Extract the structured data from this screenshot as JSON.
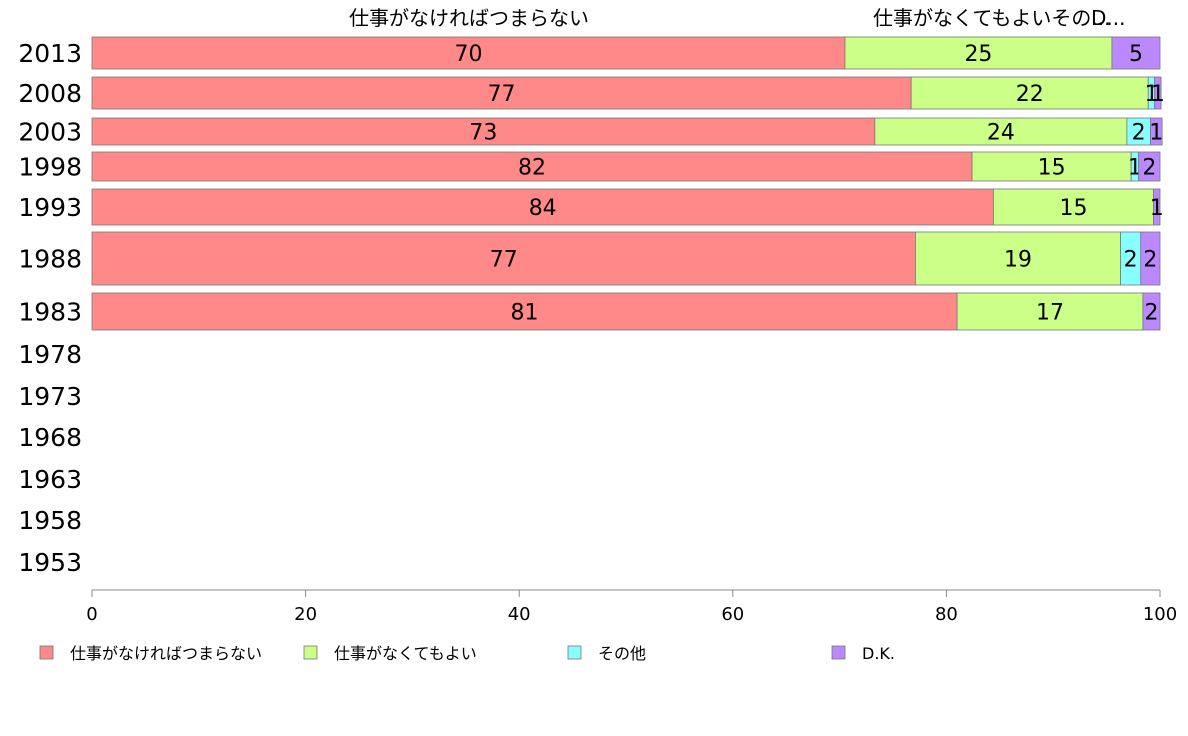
{
  "chart_data": {
    "type": "bar",
    "orientation": "horizontal",
    "stacked": true,
    "categories": [
      "2013",
      "2008",
      "2003",
      "1998",
      "1993",
      "1988",
      "1983",
      "1978",
      "1973",
      "1968",
      "1963",
      "1958",
      "1953"
    ],
    "series": [
      {
        "name": "仕事がなければつまらない",
        "color": "#ff8888",
        "values": [
          70.5,
          76.7,
          73.3,
          82.4,
          84.4,
          77.1,
          81.0,
          null,
          null,
          null,
          null,
          null,
          null
        ],
        "labels": [
          "70",
          "77",
          "73",
          "82",
          "84",
          "77",
          "81",
          "",
          "",
          "",
          "",
          "",
          ""
        ]
      },
      {
        "name": "仕事がなくてもよい",
        "color": "#ccff88",
        "values": [
          25.0,
          22.2,
          23.6,
          14.9,
          15.0,
          19.2,
          17.4,
          null,
          null,
          null,
          null,
          null,
          null
        ],
        "labels": [
          "25",
          "22",
          "24",
          "15",
          "15",
          "19",
          "17",
          "",
          "",
          "",
          "",
          "",
          ""
        ]
      },
      {
        "name": "その他",
        "color": "#88ffff",
        "values": [
          0.0,
          0.6,
          2.2,
          0.7,
          0.0,
          1.9,
          0.0,
          null,
          null,
          null,
          null,
          null,
          null
        ],
        "labels": [
          "",
          "1",
          "2",
          "1",
          "",
          "2",
          "",
          "",
          "",
          "",
          "",
          "",
          ""
        ]
      },
      {
        "name": "D.K.",
        "color": "#bb88ff",
        "values": [
          4.5,
          0.6,
          1.1,
          2.0,
          0.6,
          1.8,
          1.6,
          null,
          null,
          null,
          null,
          null,
          null
        ],
        "labels": [
          "5",
          "1",
          "1",
          "2",
          "1",
          "2",
          "2",
          "",
          "",
          "",
          "",
          "",
          ""
        ]
      }
    ],
    "top_labels": [
      "仕事がなければつまらない",
      "仕事がなくてもよいその...",
      "D..."
    ],
    "xlim": [
      0,
      100
    ],
    "xticks": [
      "0",
      "20",
      "40",
      "60",
      "80",
      "100"
    ],
    "legend_position": "bottom",
    "grid": false
  }
}
